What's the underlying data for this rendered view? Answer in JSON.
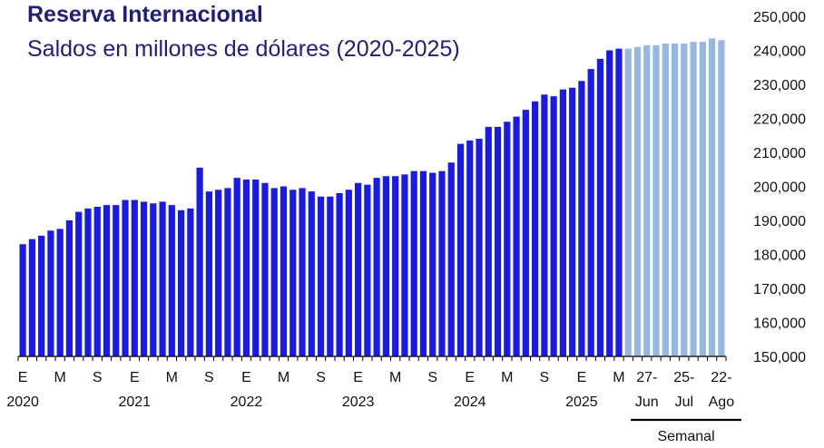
{
  "chart_data": {
    "type": "bar",
    "title": "Reserva Internacional",
    "subtitle": "Saldos en millones de dólares (2020-2025)",
    "y_axis": {
      "min": 150000,
      "max": 250000,
      "step": 10000,
      "position": "right",
      "tick_labels": [
        "150,000",
        "160,000",
        "170,000",
        "180,000",
        "190,000",
        "200,000",
        "210,000",
        "220,000",
        "230,000",
        "240,000",
        "250,000"
      ]
    },
    "colors": {
      "monthly": "#1a1ae6",
      "weekly": "#95b7e2",
      "axis": "#000000"
    },
    "monthly": {
      "values": [
        183000,
        184500,
        185500,
        187000,
        187500,
        190000,
        192500,
        193500,
        194000,
        194500,
        194500,
        196000,
        196000,
        195500,
        195000,
        195500,
        194500,
        193000,
        193500,
        205500,
        198500,
        199000,
        199500,
        202500,
        202000,
        202000,
        201000,
        199500,
        200000,
        199000,
        199500,
        198500,
        197000,
        197000,
        198000,
        199000,
        201000,
        200500,
        202500,
        203000,
        203000,
        203500,
        204500,
        204500,
        204000,
        204500,
        207000,
        212500,
        213500,
        214000,
        217500,
        217500,
        219000,
        220500,
        222500,
        225000,
        227000,
        226500,
        228500,
        229000,
        231000,
        234500,
        237500,
        240000,
        240500
      ],
      "tick_labels": [
        {
          "index": 0,
          "label": "E"
        },
        {
          "index": 4,
          "label": "M"
        },
        {
          "index": 8,
          "label": "S"
        },
        {
          "index": 12,
          "label": "E"
        },
        {
          "index": 16,
          "label": "M"
        },
        {
          "index": 20,
          "label": "S"
        },
        {
          "index": 24,
          "label": "E"
        },
        {
          "index": 28,
          "label": "M"
        },
        {
          "index": 32,
          "label": "S"
        },
        {
          "index": 36,
          "label": "E"
        },
        {
          "index": 40,
          "label": "M"
        },
        {
          "index": 44,
          "label": "S"
        },
        {
          "index": 48,
          "label": "E"
        },
        {
          "index": 52,
          "label": "M"
        },
        {
          "index": 56,
          "label": "S"
        },
        {
          "index": 60,
          "label": "E"
        },
        {
          "index": 64,
          "label": "M"
        }
      ],
      "year_labels": [
        {
          "index": 0,
          "label": "2020"
        },
        {
          "index": 12,
          "label": "2021"
        },
        {
          "index": 24,
          "label": "2022"
        },
        {
          "index": 36,
          "label": "2023"
        },
        {
          "index": 48,
          "label": "2024"
        },
        {
          "index": 60,
          "label": "2025"
        }
      ]
    },
    "weekly": {
      "label": "Semanal",
      "values": [
        240500,
        241000,
        241500,
        241500,
        242000,
        242000,
        242000,
        242500,
        242500,
        243500,
        243000
      ],
      "tick_labels": [
        {
          "index": 2,
          "line1": "27-",
          "line2": "Jun"
        },
        {
          "index": 6,
          "line1": "25-",
          "line2": "Jul"
        },
        {
          "index": 10,
          "line1": "22-",
          "line2": "Ago"
        }
      ]
    }
  }
}
